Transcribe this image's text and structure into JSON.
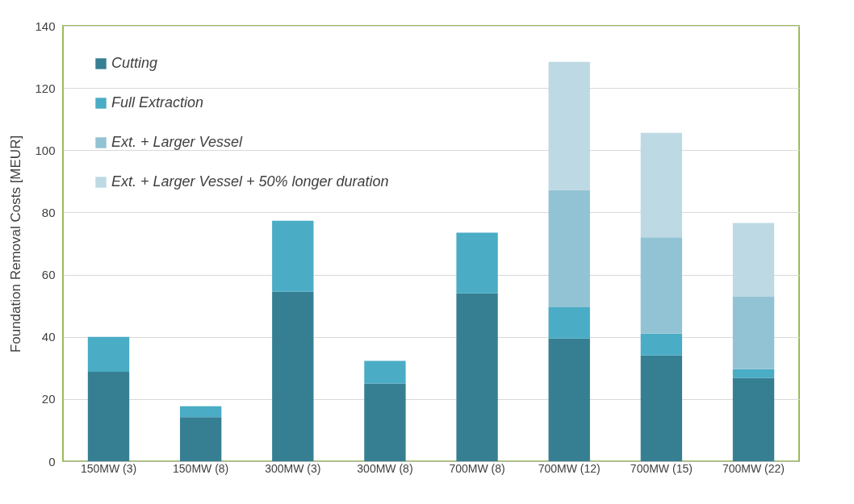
{
  "chart_data": {
    "type": "bar",
    "stacked": true,
    "ylabel": "Foundation Removal Costs [MEUR]",
    "categories": [
      "150MW (3)",
      "150MW (8)",
      "300MW (3)",
      "300MW (8)",
      "700MW (8)",
      "700MW (12)",
      "700MW (15)",
      "700MW (22)"
    ],
    "series": [
      {
        "name": "Cutting",
        "color": "#367f93",
        "values": [
          28.8,
          14.2,
          54.5,
          25,
          54,
          39.5,
          34,
          26.8
        ]
      },
      {
        "name": "Full Extraction",
        "color": "#4aacc5",
        "values": [
          11.2,
          3.5,
          22.8,
          7.3,
          19.5,
          10,
          7,
          2.8
        ]
      },
      {
        "name": "Ext. + Larger Vessel",
        "color": "#92c3d4",
        "values": [
          null,
          null,
          null,
          null,
          null,
          37.7,
          31,
          23.3
        ]
      },
      {
        "name": "Ext. + Larger Vessel + 50% longer duration",
        "color": "#bdd9e4",
        "values": [
          null,
          null,
          null,
          null,
          null,
          41.2,
          33.6,
          23.7
        ]
      }
    ],
    "ylim": [
      0,
      140
    ],
    "yticks": [
      0,
      20,
      40,
      60,
      80,
      100,
      120,
      140
    ],
    "grid": "y",
    "legend": "top left"
  }
}
